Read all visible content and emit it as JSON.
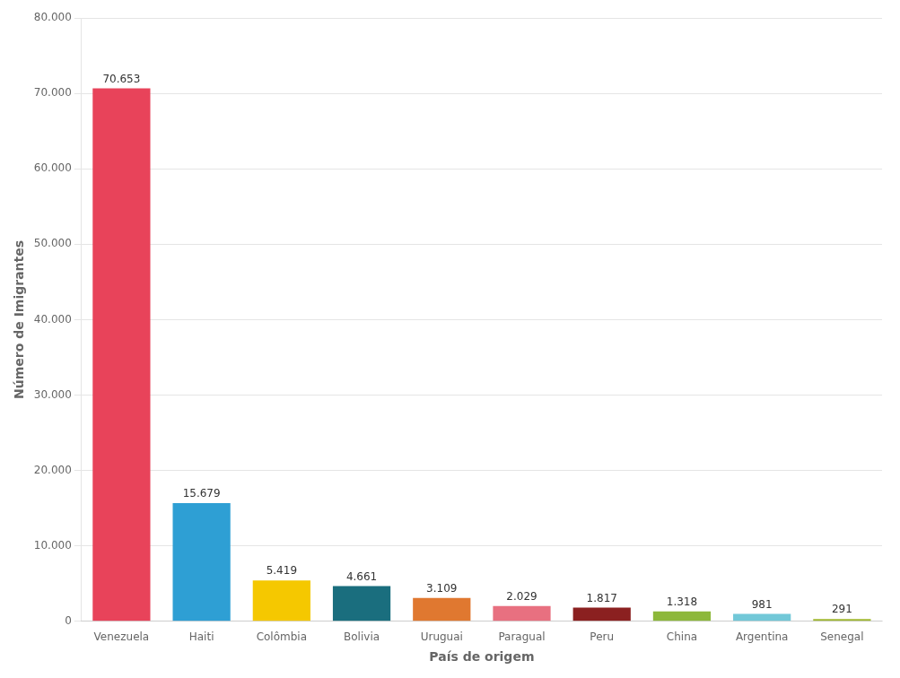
{
  "chart_data": {
    "type": "bar",
    "xlabel": "País de origem",
    "ylabel": "Número de Imigrantes",
    "categories": [
      "Venezuela",
      "Haiti",
      "Colômbia",
      "Bolivia",
      "Uruguai",
      "Paragual",
      "Peru",
      "China",
      "Argentina",
      "Senegal"
    ],
    "values": [
      70653,
      15679,
      5419,
      4661,
      3109,
      2029,
      1817,
      1318,
      981,
      291
    ],
    "value_labels": [
      "70.653",
      "15.679",
      "5.419",
      "4.661",
      "3.109",
      "2.029",
      "1.817",
      "1.318",
      "981",
      "291"
    ],
    "colors": [
      "#e8435a",
      "#2e9fd4",
      "#f5c800",
      "#1a6e7e",
      "#e07830",
      "#e87080",
      "#8b2020",
      "#8db83a",
      "#72c8d8",
      "#a0b830"
    ],
    "ylim": [
      0,
      80000
    ],
    "yticks": [
      0,
      {
        "value": 10000,
        "label": "10.000"
      },
      {
        "value": 20000,
        "label": "20.000"
      },
      {
        "value": 30000,
        "label": "30.000"
      },
      {
        "value": 40000,
        "label": "40.000"
      },
      {
        "value": 50000,
        "label": "50.000"
      },
      {
        "value": 60000,
        "label": "60.000"
      },
      {
        "value": 70000,
        "label": "70.000"
      },
      {
        "value": 80000,
        "label": "80.000"
      }
    ],
    "grid": true,
    "data_labels": true
  }
}
